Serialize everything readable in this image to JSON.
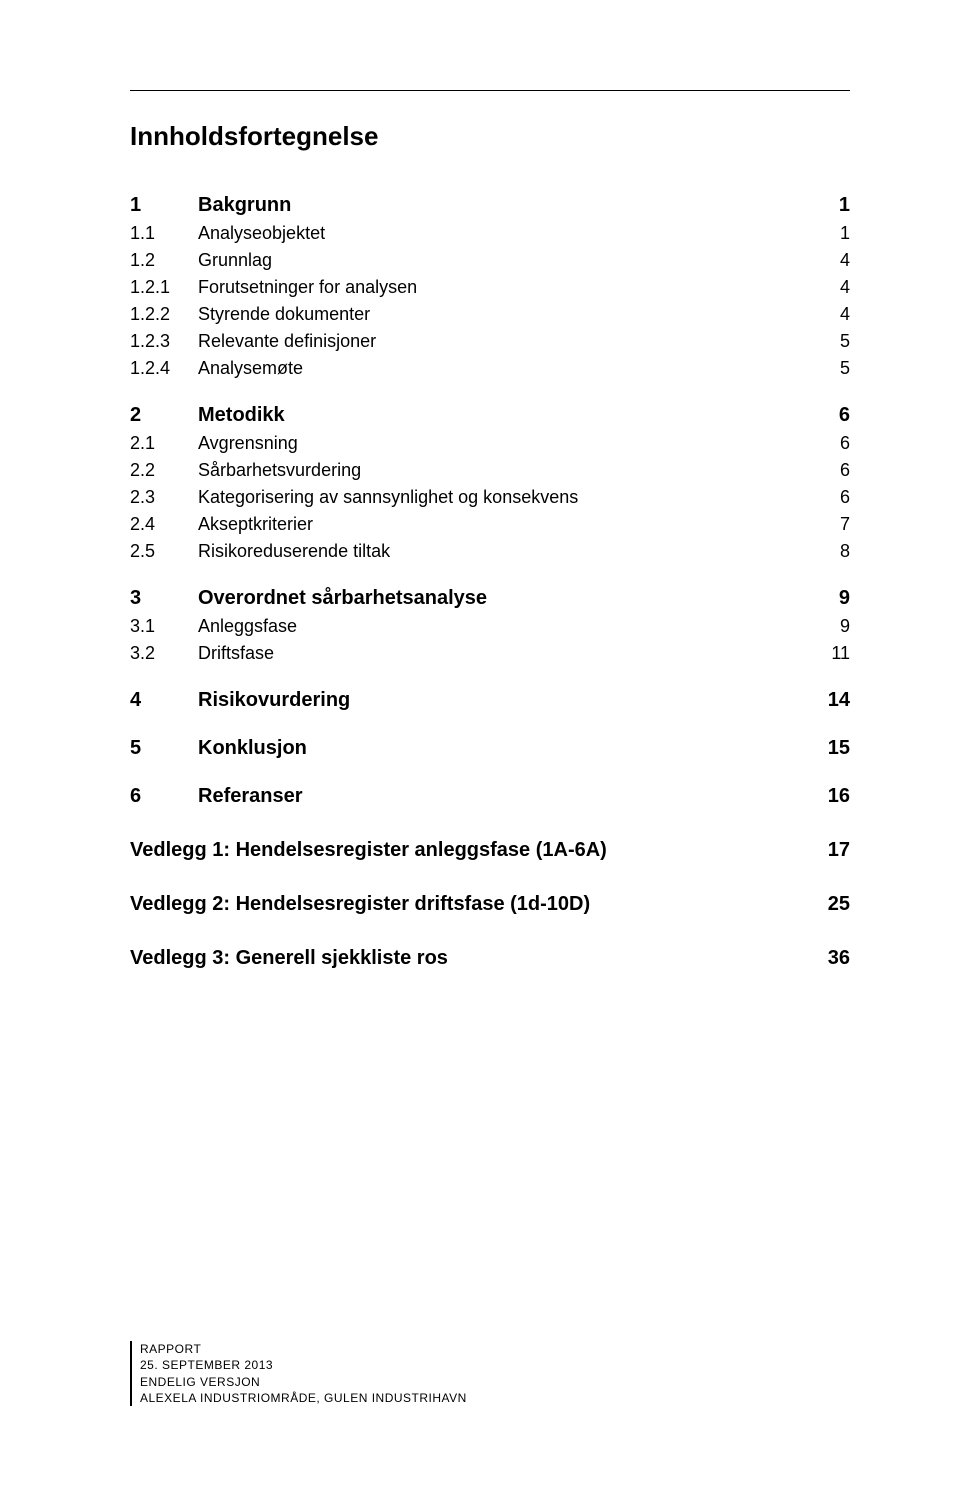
{
  "title": "Innholdsfortegnelse",
  "sections": [
    {
      "num": "1",
      "label": "Bakgrunn",
      "page": "1",
      "level": 1,
      "children": [
        {
          "num": "1.1",
          "label": "Analyseobjektet",
          "page": "1",
          "level": 2
        },
        {
          "num": "1.2",
          "label": "Grunnlag",
          "page": "4",
          "level": 2
        },
        {
          "num": "1.2.1",
          "label": "Forutsetninger for analysen",
          "page": "4",
          "level": 3
        },
        {
          "num": "1.2.2",
          "label": "Styrende dokumenter",
          "page": "4",
          "level": 3
        },
        {
          "num": "1.2.3",
          "label": "Relevante definisjoner",
          "page": "5",
          "level": 3
        },
        {
          "num": "1.2.4",
          "label": "Analysemøte",
          "page": "5",
          "level": 3
        }
      ]
    },
    {
      "num": "2",
      "label": "Metodikk",
      "page": "6",
      "level": 1,
      "children": [
        {
          "num": "2.1",
          "label": "Avgrensning",
          "page": "6",
          "level": 2
        },
        {
          "num": "2.2",
          "label": "Sårbarhetsvurdering",
          "page": "6",
          "level": 2
        },
        {
          "num": "2.3",
          "label": "Kategorisering av sannsynlighet og konsekvens",
          "page": "6",
          "level": 2
        },
        {
          "num": "2.4",
          "label": "Akseptkriterier",
          "page": "7",
          "level": 2
        },
        {
          "num": "2.5",
          "label": "Risikoreduserende tiltak",
          "page": "8",
          "level": 2
        }
      ]
    },
    {
      "num": "3",
      "label": "Overordnet sårbarhetsanalyse",
      "page": "9",
      "level": 1,
      "children": [
        {
          "num": "3.1",
          "label": "Anleggsfase",
          "page": "9",
          "level": 2
        },
        {
          "num": "3.2",
          "label": "Driftsfase",
          "page": "11",
          "level": 2
        }
      ]
    },
    {
      "num": "4",
      "label": "Risikovurdering",
      "page": "14",
      "level": 1,
      "children": []
    },
    {
      "num": "5",
      "label": "Konklusjon",
      "page": "15",
      "level": 1,
      "children": []
    },
    {
      "num": "6",
      "label": "Referanser",
      "page": "16",
      "level": 1,
      "children": []
    }
  ],
  "appendices": [
    {
      "label": "Vedlegg 1: Hendelsesregister anleggsfase (1A-6A)",
      "page": "17"
    },
    {
      "label": "Vedlegg 2: Hendelsesregister driftsfase (1d-10D)",
      "page": "25"
    },
    {
      "label": "Vedlegg 3: Generell sjekkliste ros",
      "page": "36"
    }
  ],
  "footer": {
    "l1": "RAPPORT",
    "l2": "25. SEPTEMBER 2013",
    "l3": "ENDELIG VERSJON",
    "l4": "ALEXELA INDUSTRIOMRÅDE, GULEN INDUSTRIHAVN"
  }
}
